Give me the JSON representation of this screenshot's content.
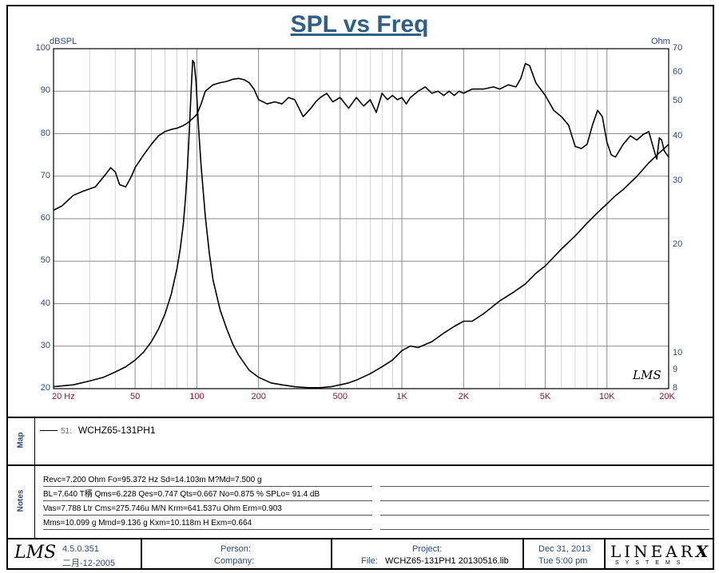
{
  "chart_data": {
    "type": "line",
    "title": "SPL vs Freq",
    "ylabel_left": "dBSPL",
    "ylabel_right": "Ohm",
    "x_scale": "log",
    "xlim": [
      20,
      20000
    ],
    "ylim_left": [
      20,
      100
    ],
    "ylim_right": [
      8,
      70
    ],
    "y_scale_right": "log",
    "x_ticks": [
      {
        "v": 20,
        "label": "20  Hz"
      },
      {
        "v": 50,
        "label": "50"
      },
      {
        "v": 100,
        "label": "100"
      },
      {
        "v": 200,
        "label": "200"
      },
      {
        "v": 500,
        "label": "500"
      },
      {
        "v": 1000,
        "label": "1K"
      },
      {
        "v": 2000,
        "label": "2K"
      },
      {
        "v": 5000,
        "label": "5K"
      },
      {
        "v": 10000,
        "label": "10K"
      },
      {
        "v": 20000,
        "label": "20K"
      }
    ],
    "y_ticks_left": [
      "100",
      "90",
      "80",
      "70",
      "60",
      "50",
      "40",
      "30",
      "20"
    ],
    "y_ticks_right": [
      {
        "v": 70,
        "label": "70"
      },
      {
        "v": 60,
        "label": "60"
      },
      {
        "v": 50,
        "label": "50"
      },
      {
        "v": 40,
        "label": "40"
      },
      {
        "v": 30,
        "label": "30"
      },
      {
        "v": 20,
        "label": "20"
      },
      {
        "v": 10,
        "label": "10"
      },
      {
        "v": 9,
        "label": "9"
      },
      {
        "v": 8,
        "label": "8"
      }
    ],
    "grid": true,
    "series": [
      {
        "key": "spl",
        "axis": "left",
        "x": [
          20,
          22,
          25,
          28,
          32,
          36,
          38,
          40,
          42,
          45,
          48,
          50,
          55,
          60,
          65,
          70,
          75,
          80,
          85,
          90,
          95,
          100,
          105,
          110,
          120,
          130,
          140,
          150,
          160,
          170,
          180,
          190,
          200,
          220,
          240,
          260,
          280,
          300,
          330,
          360,
          380,
          400,
          430,
          460,
          500,
          550,
          600,
          650,
          700,
          750,
          800,
          850,
          900,
          950,
          1000,
          1050,
          1100,
          1200,
          1300,
          1400,
          1500,
          1600,
          1700,
          1800,
          1900,
          2000,
          2200,
          2500,
          2800,
          3000,
          3300,
          3600,
          3800,
          4000,
          4200,
          4500,
          5000,
          5500,
          6000,
          6500,
          7000,
          7500,
          8000,
          8500,
          9000,
          9500,
          10000,
          10500,
          11000,
          12000,
          13000,
          14000,
          15000,
          16000,
          17000,
          17500,
          18000,
          18500,
          19000,
          20000
        ],
        "y": [
          62,
          63,
          65.5,
          66.5,
          67.5,
          70.5,
          72,
          71,
          68,
          67.5,
          70,
          72,
          75,
          77.5,
          79.5,
          80.5,
          81,
          81.3,
          81.8,
          82.5,
          83.5,
          84.5,
          87,
          90,
          91.5,
          92,
          92.3,
          92.8,
          93,
          92.7,
          92,
          90.5,
          88,
          87,
          87.5,
          87,
          88.5,
          88,
          84,
          86,
          87.5,
          88.5,
          89.5,
          87.5,
          88.5,
          86,
          88.5,
          86.5,
          88,
          85,
          89.5,
          88,
          89,
          88,
          88.5,
          87,
          88.5,
          90,
          91,
          89.5,
          90,
          89,
          90,
          89,
          90,
          89.5,
          90.5,
          90.5,
          91,
          90.5,
          91.5,
          91,
          93,
          96.5,
          96,
          92,
          89,
          85.5,
          84,
          82,
          77,
          76.5,
          77.5,
          82,
          85.5,
          84,
          78,
          75,
          74.5,
          77.5,
          79.5,
          78.5,
          79.8,
          80.5,
          76,
          74,
          79,
          78.5,
          76,
          74.5
        ]
      },
      {
        "key": "impedance",
        "axis": "right",
        "x": [
          20,
          25,
          30,
          35,
          40,
          45,
          50,
          55,
          60,
          65,
          70,
          75,
          80,
          83,
          86,
          88,
          90,
          92,
          94,
          95.4,
          97,
          99,
          102,
          105,
          110,
          115,
          120,
          130,
          140,
          150,
          160,
          180,
          200,
          230,
          260,
          300,
          350,
          400,
          450,
          500,
          550,
          600,
          700,
          800,
          900,
          1000,
          1100,
          1200,
          1400,
          1600,
          1800,
          2000,
          2200,
          2500,
          3000,
          3500,
          4000,
          4500,
          5000,
          6000,
          7000,
          8000,
          9000,
          10000,
          11000,
          12000,
          14000,
          16000,
          18000,
          20000
        ],
        "y": [
          8.1,
          8.2,
          8.4,
          8.6,
          8.9,
          9.2,
          9.6,
          10.1,
          10.8,
          11.7,
          12.9,
          14.6,
          17.2,
          19.5,
          23,
          27,
          33,
          42,
          55,
          65,
          64,
          57,
          42,
          33,
          24,
          19,
          16,
          13.2,
          11.7,
          10.6,
          9.9,
          9,
          8.6,
          8.3,
          8.2,
          8.1,
          8.05,
          8.05,
          8.1,
          8.2,
          8.3,
          8.45,
          8.8,
          9.2,
          9.6,
          10.2,
          10.5,
          10.4,
          10.8,
          11.4,
          11.9,
          12.3,
          12.3,
          12.9,
          14,
          14.8,
          15.6,
          16.7,
          17.5,
          19.5,
          21.2,
          23,
          24.6,
          26,
          27.4,
          28.5,
          31,
          33.8,
          36,
          38
        ]
      }
    ],
    "legend": {
      "placement": "map-box",
      "entries": [
        {
          "id": "51:",
          "name": "WCHZ65-131PH1"
        }
      ]
    },
    "annotations": [
      "LMS"
    ]
  },
  "sections": {
    "map_label": "Map",
    "notes_label": "Notes"
  },
  "notes": [
    "Revc=7.200 Ohm  Fo=95.372 Hz  Sd=14.103m M?Md=7.500 g",
    "BL=7.640 T稰  Qms=6.228  Qes=0.747  Qts=0.667  No=0.875 %  SPLo= 91.4 dB",
    "Vas=7.788 Ltr  Cms=275.746u M/N  Krm=641.537u Ohm  Erm=0.903",
    "Mms=10.099 g  Mmd=9.136 g  Kxm=10.118m H  Exm=0.664"
  ],
  "footer": {
    "logo": "LMS",
    "version": "4.5.0.351",
    "date_code": "二月-12-2005",
    "person_label": "Person:",
    "company_label": "Company:",
    "project_label": "Project:",
    "file_label": "File:",
    "file_name": "WCHZ65-131PH1  20130516.lib",
    "date": "Dec 31, 2013",
    "time": "Tue  5:00 pm",
    "brand": "LINEAR",
    "brand_x": "X",
    "brand_sub": "SYSTEMS"
  }
}
